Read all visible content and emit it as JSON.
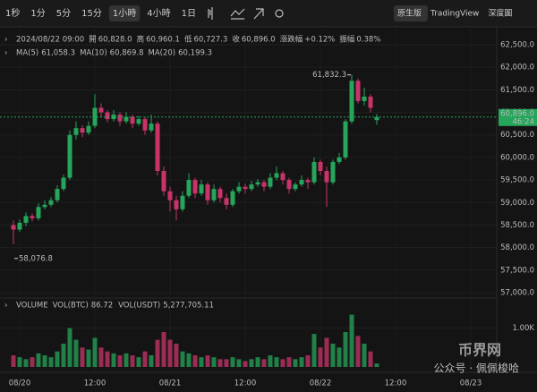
{
  "toolbar": {
    "intervals": [
      "1秒",
      "1分",
      "5分",
      "15分",
      "1小時",
      "4小時",
      "1日"
    ],
    "active": 4
  },
  "views": [
    "原生版",
    "TradingView",
    "深度圖"
  ],
  "watermark": [
    "公众号 · 佩佩梭哈",
    "币界网"
  ],
  "chart_data": {
    "type": "candlestick",
    "header": {
      "date": "2024/08/22 09:00",
      "fields": [
        {
          "label": "開",
          "value": "60,828.0"
        },
        {
          "label": "高",
          "value": "60,960.1"
        },
        {
          "label": "低",
          "value": "60,727.3"
        },
        {
          "label": "收",
          "value": "60,896.0"
        },
        {
          "label": "漲跌幅",
          "value": "+0.12%"
        },
        {
          "label": "振幅",
          "value": "0.38%"
        }
      ]
    },
    "ma": [
      {
        "name": "MA(5)",
        "value": "61,058.3",
        "color": "#e8a33c"
      },
      {
        "name": "MA(10)",
        "value": "60,869.8",
        "color": "#e05a8a"
      },
      {
        "name": "MA(20)",
        "value": "60,199.3",
        "color": "#4fa3e0"
      }
    ],
    "up_color": "#26a65b",
    "down_color": "#c8346a",
    "categories": [
      null,
      "08/20",
      null,
      null,
      null,
      null,
      null,
      null,
      null,
      null,
      null,
      null,
      null,
      "12:00",
      null,
      null,
      null,
      null,
      null,
      null,
      null,
      null,
      null,
      null,
      null,
      "08/21",
      null,
      null,
      null,
      null,
      null,
      null,
      null,
      null,
      null,
      null,
      null,
      "12:00",
      null,
      null,
      null,
      null,
      null,
      null,
      null,
      null,
      null,
      null,
      null,
      "08/22",
      null,
      null,
      null,
      null,
      null,
      null,
      null,
      null,
      null,
      null,
      null,
      "12:00",
      null,
      null,
      null,
      null,
      null,
      null,
      null,
      null,
      null,
      null,
      null,
      "08/23"
    ],
    "candles": [
      [
        58500,
        58600,
        58076.8,
        58400
      ],
      [
        58400,
        58620,
        58350,
        58550
      ],
      [
        58550,
        58780,
        58480,
        58700
      ],
      [
        58700,
        58760,
        58580,
        58650
      ],
      [
        58650,
        58980,
        58600,
        58900
      ],
      [
        58900,
        59050,
        58850,
        58950
      ],
      [
        58950,
        59120,
        58900,
        59050
      ],
      [
        59050,
        59380,
        59000,
        59300
      ],
      [
        59300,
        59620,
        59250,
        59550
      ],
      [
        59550,
        60600,
        59500,
        60500
      ],
      [
        60500,
        60800,
        60400,
        60650
      ],
      [
        60650,
        60720,
        60450,
        60550
      ],
      [
        60550,
        60800,
        60500,
        60700
      ],
      [
        60700,
        61400,
        60650,
        61100
      ],
      [
        61100,
        61200,
        60900,
        61000
      ],
      [
        61000,
        61050,
        60780,
        60850
      ],
      [
        60850,
        61050,
        60800,
        60950
      ],
      [
        60950,
        61000,
        60700,
        60800
      ],
      [
        60800,
        61000,
        60750,
        60900
      ],
      [
        60900,
        60950,
        60650,
        60750
      ],
      [
        60750,
        60920,
        60700,
        60850
      ],
      [
        60850,
        60900,
        60500,
        60600
      ],
      [
        60600,
        60950,
        60550,
        60750
      ],
      [
        60750,
        60800,
        59600,
        59700
      ],
      [
        59700,
        59800,
        59150,
        59250
      ],
      [
        59250,
        59350,
        58800,
        59050
      ],
      [
        59050,
        59150,
        58600,
        58850
      ],
      [
        58850,
        59250,
        58800,
        59150
      ],
      [
        59150,
        59650,
        59100,
        59500
      ],
      [
        59500,
        59550,
        59100,
        59200
      ],
      [
        59200,
        59500,
        59150,
        59400
      ],
      [
        59400,
        59450,
        58950,
        59050
      ],
      [
        59050,
        59400,
        59000,
        59300
      ],
      [
        59300,
        59350,
        59000,
        59100
      ],
      [
        59100,
        59200,
        58850,
        58950
      ],
      [
        58950,
        59300,
        58900,
        59250
      ],
      [
        59250,
        59450,
        59200,
        59350
      ],
      [
        59350,
        59420,
        59200,
        59300
      ],
      [
        59300,
        59480,
        59250,
        59400
      ],
      [
        59400,
        59520,
        59350,
        59450
      ],
      [
        59450,
        59500,
        59250,
        59350
      ],
      [
        59350,
        59650,
        59300,
        59550
      ],
      [
        59550,
        59800,
        59500,
        59650
      ],
      [
        59650,
        59700,
        59400,
        59500
      ],
      [
        59500,
        59550,
        59200,
        59300
      ],
      [
        59300,
        59450,
        59250,
        59400
      ],
      [
        59400,
        59600,
        59350,
        59500
      ],
      [
        59500,
        59550,
        59300,
        59450
      ],
      [
        59450,
        60000,
        59400,
        59900
      ],
      [
        59900,
        59950,
        59600,
        59700
      ],
      [
        59700,
        59800,
        58900,
        59450
      ],
      [
        59450,
        59950,
        59400,
        59900
      ],
      [
        59900,
        60100,
        59850,
        60000
      ],
      [
        60000,
        60850,
        59950,
        60800
      ],
      [
        60800,
        61832.3,
        60750,
        61700
      ],
      [
        61700,
        61750,
        61200,
        61250
      ],
      [
        61250,
        61550,
        61150,
        61350
      ],
      [
        61350,
        61400,
        61000,
        61100
      ],
      [
        60828,
        60960.1,
        60727.3,
        60896
      ],
      null,
      null,
      null,
      null,
      null,
      null,
      null,
      null,
      null,
      null,
      null,
      null,
      null,
      null,
      null
    ],
    "ylim": [
      57000,
      62500
    ],
    "yticks": [
      {
        "value": 57000,
        "label": "57,000.0"
      },
      {
        "value": 57500,
        "label": "57,500.0"
      },
      {
        "value": 58000,
        "label": "58,000.0"
      },
      {
        "value": 58500,
        "label": "58,500.0"
      },
      {
        "value": 59000,
        "label": "59,000.0"
      },
      {
        "value": 59500,
        "label": "59,500.0"
      },
      {
        "value": 60000,
        "label": "60,000.0"
      },
      {
        "value": 60500,
        "label": "60,500.0"
      },
      {
        "value": 61000,
        "label": "61,000.0"
      },
      {
        "value": 61500,
        "label": "61,500.0"
      },
      {
        "value": 62000,
        "label": "62,000.0"
      },
      {
        "value": 62500,
        "label": "62,500.0"
      }
    ],
    "last_price": {
      "value": 60896,
      "label": "60,896.0",
      "countdown": "46:24"
    },
    "high_label": "61,832.3",
    "low_label": "58,076.8",
    "volume": {
      "title": "VOLUME",
      "fields": [
        {
          "label": "VOL(BTC)",
          "value": "86.72"
        },
        {
          "label": "VOL(USDT)",
          "value": "5,277,705.11"
        }
      ],
      "values": [
        300,
        250,
        200,
        250,
        350,
        300,
        250,
        400,
        600,
        1000,
        700,
        500,
        450,
        750,
        500,
        400,
        350,
        300,
        350,
        300,
        250,
        400,
        300,
        700,
        900,
        700,
        600,
        400,
        350,
        300,
        250,
        300,
        250,
        200,
        200,
        250,
        200,
        150,
        200,
        250,
        200,
        300,
        250,
        200,
        250,
        200,
        250,
        300,
        850,
        500,
        750,
        600,
        500,
        900,
        1350,
        800,
        600,
        400,
        86.72,
        null,
        null,
        null,
        null,
        null,
        null,
        null,
        null,
        null,
        null,
        null,
        null,
        null,
        null,
        null
      ],
      "ylim": [
        0,
        1500
      ],
      "yticks": [
        {
          "value": 1000,
          "label": "1.00K"
        }
      ]
    }
  }
}
